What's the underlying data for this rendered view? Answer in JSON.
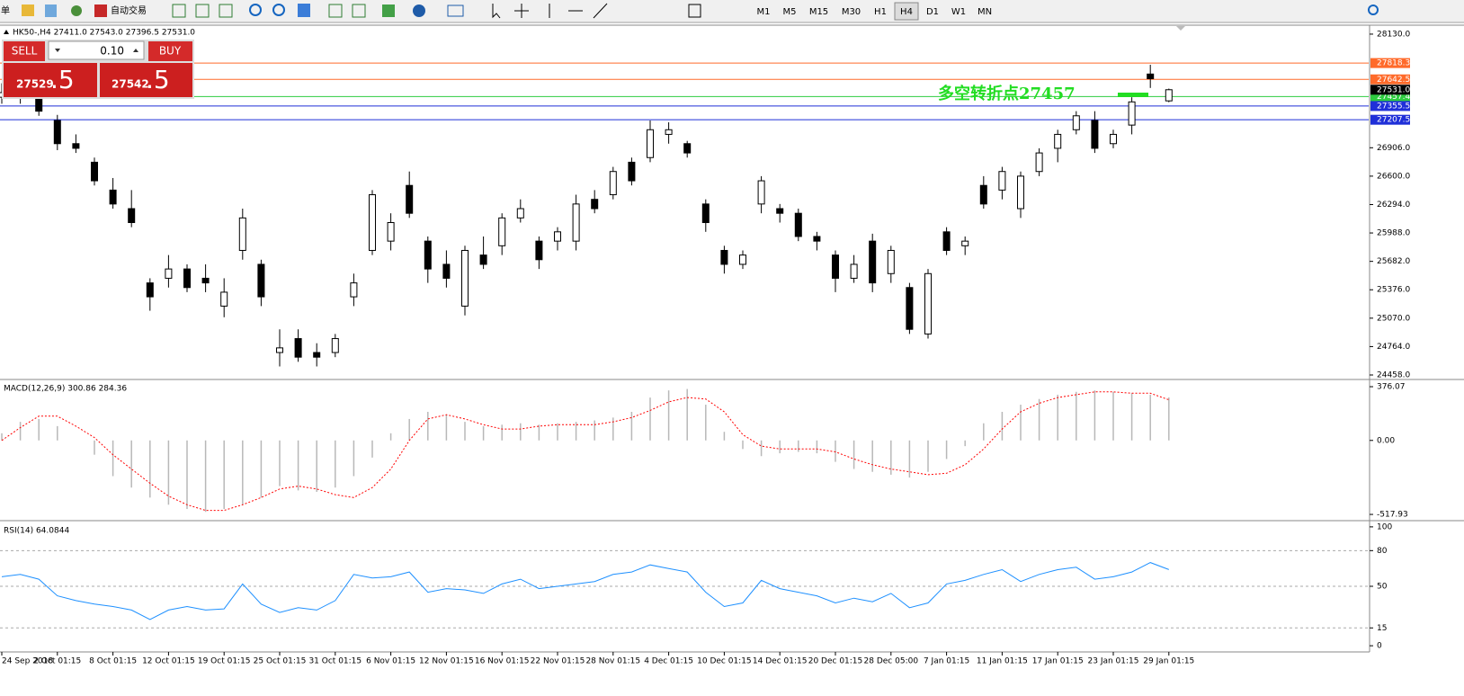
{
  "toolbar": {
    "menu": "单",
    "autotrade": "自动交易",
    "timeframes": [
      "M1",
      "M5",
      "M15",
      "M30",
      "H1",
      "H4",
      "D1",
      "W1",
      "MN"
    ],
    "active_timeframe": "H4"
  },
  "trade_panel": {
    "sell": "SELL",
    "buy": "BUY",
    "lot": "0.10",
    "bid_main": "27529",
    "bid_frac": ".5",
    "ask_main": "27542",
    "ask_frac": ".5"
  },
  "chart_data": [
    {
      "type": "candlestick",
      "title": "HK50-,H4  27411.0 27543.0 27396.5 27531.0",
      "annotation": "多空转折点27457",
      "ylim": [
        24429,
        28207
      ],
      "yticks": [
        {
          "value": 28130,
          "label": "28130.0"
        },
        {
          "value": 26906,
          "label": "26906.0"
        },
        {
          "value": 26600,
          "label": "26600.0"
        },
        {
          "value": 26294,
          "label": "26294.0"
        },
        {
          "value": 25988,
          "label": "25988.0"
        },
        {
          "value": 25682,
          "label": "25682.0"
        },
        {
          "value": 25376,
          "label": "25376.0"
        },
        {
          "value": 25070,
          "label": "25070.0"
        },
        {
          "value": 24764,
          "label": "24764.0"
        },
        {
          "value": 24458,
          "label": "24458.0"
        }
      ],
      "levels": [
        {
          "value": 27818.3,
          "color": "#ff6a2a"
        },
        {
          "value": 27642.5,
          "color": "#ff6a2a"
        },
        {
          "value": 27457.4,
          "color": "#2ecc40"
        },
        {
          "value": 27355.5,
          "color": "#1f2fd8"
        },
        {
          "value": 27207.5,
          "color": "#1f2fd8"
        }
      ],
      "last_price": {
        "value": 27531,
        "label": "27531.0"
      },
      "ohlc": [
        [
          27450,
          27600,
          27380,
          27500
        ],
        [
          27500,
          27560,
          27380,
          27450
        ],
        [
          27450,
          27520,
          27250,
          27300
        ],
        [
          27200,
          27260,
          26880,
          26950
        ],
        [
          26950,
          27050,
          26850,
          26900
        ],
        [
          26750,
          26800,
          26500,
          26550
        ],
        [
          26450,
          26580,
          26250,
          26300
        ],
        [
          26250,
          26450,
          26050,
          26100
        ],
        [
          25450,
          25500,
          25150,
          25300
        ],
        [
          25500,
          25750,
          25400,
          25600
        ],
        [
          25600,
          25650,
          25350,
          25400
        ],
        [
          25500,
          25650,
          25350,
          25450
        ],
        [
          25200,
          25500,
          25080,
          25350
        ],
        [
          25800,
          26250,
          25700,
          26150
        ],
        [
          25650,
          25700,
          25200,
          25300
        ],
        [
          24700,
          24950,
          24550,
          24750
        ],
        [
          24850,
          24950,
          24600,
          24650
        ],
        [
          24700,
          24800,
          24550,
          24650
        ],
        [
          24700,
          24900,
          24650,
          24850
        ],
        [
          25300,
          25550,
          25200,
          25450
        ],
        [
          25800,
          26450,
          25750,
          26400
        ],
        [
          25900,
          26200,
          25800,
          26100
        ],
        [
          26500,
          26650,
          26150,
          26200
        ],
        [
          25900,
          25950,
          25450,
          25600
        ],
        [
          25650,
          25800,
          25400,
          25500
        ],
        [
          25200,
          25850,
          25100,
          25800
        ],
        [
          25750,
          25950,
          25600,
          25650
        ],
        [
          25850,
          26200,
          25750,
          26150
        ],
        [
          26150,
          26350,
          26100,
          26250
        ],
        [
          25900,
          25950,
          25600,
          25700
        ],
        [
          25900,
          26050,
          25800,
          26000
        ],
        [
          25900,
          26400,
          25800,
          26300
        ],
        [
          26350,
          26450,
          26200,
          26250
        ],
        [
          26400,
          26700,
          26350,
          26650
        ],
        [
          26750,
          26800,
          26500,
          26550
        ],
        [
          26800,
          27200,
          26750,
          27100
        ],
        [
          27050,
          27180,
          26950,
          27100
        ],
        [
          26950,
          26980,
          26800,
          26850
        ],
        [
          26300,
          26350,
          26000,
          26100
        ],
        [
          25800,
          25850,
          25550,
          25650
        ],
        [
          25650,
          25800,
          25600,
          25750
        ],
        [
          26300,
          26600,
          26200,
          26550
        ],
        [
          26250,
          26300,
          26100,
          26200
        ],
        [
          26200,
          26250,
          25900,
          25950
        ],
        [
          25950,
          26000,
          25800,
          25900
        ],
        [
          25750,
          25800,
          25350,
          25500
        ],
        [
          25500,
          25750,
          25450,
          25650
        ],
        [
          25900,
          25980,
          25350,
          25450
        ],
        [
          25550,
          25850,
          25450,
          25800
        ],
        [
          25400,
          25450,
          24900,
          24950
        ],
        [
          24900,
          25600,
          24850,
          25550
        ],
        [
          26000,
          26050,
          25750,
          25800
        ],
        [
          25850,
          25950,
          25750,
          25900
        ],
        [
          26500,
          26600,
          26250,
          26300
        ],
        [
          26450,
          26700,
          26350,
          26650
        ],
        [
          26250,
          26650,
          26150,
          26600
        ],
        [
          26650,
          26900,
          26600,
          26850
        ],
        [
          26900,
          27100,
          26750,
          27050
        ],
        [
          27100,
          27300,
          27050,
          27250
        ],
        [
          27200,
          27300,
          26850,
          26900
        ],
        [
          26950,
          27100,
          26900,
          27050
        ],
        [
          27150,
          27450,
          27050,
          27400
        ],
        [
          27700,
          27800,
          27550,
          27650
        ],
        [
          27411,
          27543,
          27396.5,
          27531
        ]
      ]
    },
    {
      "type": "macd",
      "title": "MACD(12,26,9) 300.86 284.36",
      "ylim": [
        -549,
        414
      ],
      "yticks": [
        376.07,
        {
          "value": 0,
          "label": "0.00"
        },
        -517.93
      ],
      "series": [
        {
          "style": "histogram",
          "color": "#b8b8b8",
          "values": [
            50,
            130,
            150,
            100,
            0,
            -100,
            -250,
            -330,
            -400,
            -450,
            -480,
            -500,
            -480,
            -450,
            -400,
            -320,
            -350,
            -360,
            -330,
            -250,
            -120,
            50,
            150,
            200,
            180,
            130,
            100,
            110,
            120,
            110,
            120,
            130,
            140,
            160,
            200,
            300,
            350,
            360,
            250,
            60,
            -60,
            -110,
            -90,
            -80,
            -90,
            -150,
            -200,
            -220,
            -240,
            -260,
            -220,
            -130,
            -40,
            120,
            200,
            250,
            290,
            320,
            340,
            350,
            340,
            330,
            320,
            300.86
          ]
        },
        {
          "style": "dotted",
          "color": "#ff0000",
          "values": [
            0,
            90,
            170,
            170,
            100,
            20,
            -100,
            -200,
            -300,
            -390,
            -450,
            -490,
            -490,
            -450,
            -400,
            -340,
            -320,
            -340,
            -380,
            -400,
            -330,
            -200,
            0,
            150,
            180,
            150,
            110,
            80,
            80,
            100,
            110,
            110,
            110,
            130,
            160,
            210,
            270,
            300,
            290,
            200,
            40,
            -40,
            -60,
            -60,
            -60,
            -80,
            -130,
            -170,
            -200,
            -220,
            -240,
            -230,
            -170,
            -60,
            80,
            200,
            260,
            300,
            320,
            340,
            340,
            330,
            330,
            284.36
          ]
        }
      ]
    },
    {
      "type": "line",
      "title": "RSI(14) 64.0844",
      "ylim": [
        -3.7,
        103.7
      ],
      "yticks": [
        100,
        80,
        50,
        15,
        0
      ],
      "grid": true,
      "categories": [
        "24 Sep 2018",
        null,
        null,
        "2 Oct 01:15",
        null,
        null,
        "8 Oct 01:15",
        null,
        null,
        "12 Oct 01:15",
        null,
        null,
        "19 Oct 01:15",
        null,
        null,
        "25 Oct 01:15",
        null,
        null,
        "31 Oct 01:15",
        null,
        null,
        "6 Nov 01:15",
        null,
        null,
        "12 Nov 01:15",
        null,
        null,
        "16 Nov 01:15",
        null,
        null,
        "22 Nov 01:15",
        null,
        null,
        "28 Nov 01:15",
        null,
        null,
        "4 Dec 01:15",
        null,
        null,
        "10 Dec 01:15",
        null,
        null,
        "14 Dec 01:15",
        null,
        null,
        "20 Dec 01:15",
        null,
        null,
        "28 Dec 05:00",
        null,
        null,
        "7 Jan 01:15",
        null,
        null,
        "11 Jan 01:15",
        null,
        null,
        "17 Jan 01:15",
        null,
        null,
        "23 Jan 01:15",
        null,
        null,
        "29 Jan 01:15"
      ],
      "series": [
        {
          "color": "#1e90ff",
          "values": [
            58,
            60,
            56,
            42,
            38,
            35,
            33,
            30,
            22,
            30,
            33,
            30,
            31,
            52,
            35,
            28,
            32,
            30,
            38,
            60,
            57,
            58,
            62,
            45,
            48,
            47,
            44,
            52,
            56,
            48,
            50,
            52,
            54,
            60,
            62,
            68,
            65,
            62,
            45,
            33,
            36,
            55,
            48,
            45,
            42,
            36,
            40,
            37,
            44,
            32,
            36,
            52,
            55,
            60,
            64,
            54,
            60,
            64,
            66,
            56,
            58,
            62,
            70,
            64.0844
          ]
        }
      ]
    }
  ]
}
